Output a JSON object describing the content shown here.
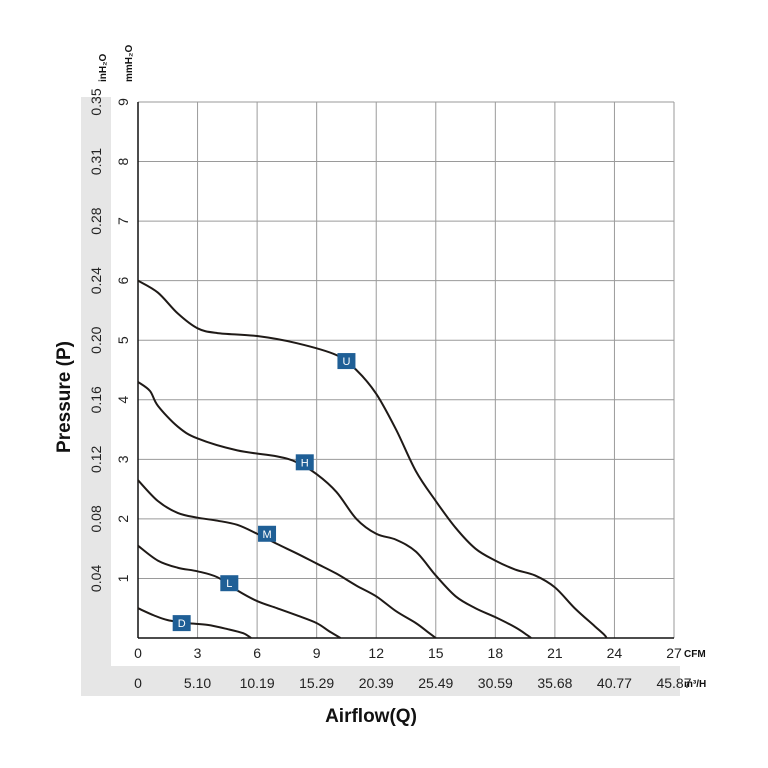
{
  "chart_data": {
    "type": "line",
    "xlabel": "Airflow(Q)",
    "ylabel": "Pressure (P)",
    "x_unit_primary": "CFM",
    "x_unit_secondary": "m³/H",
    "y_unit_primary": "mmH₂O",
    "y_unit_secondary": "inH₂O",
    "xlim": [
      0,
      27
    ],
    "ylim": [
      0,
      9
    ],
    "grid": true,
    "x_ticks": [
      "0",
      "3",
      "6",
      "9",
      "12",
      "15",
      "18",
      "21",
      "24",
      "27"
    ],
    "x_ticks_secondary": [
      "0",
      "5.10",
      "10.19",
      "15.29",
      "20.39",
      "25.49",
      "30.59",
      "35.68",
      "40.77",
      "45.87"
    ],
    "y_ticks": [
      "9",
      "8",
      "7",
      "6",
      "5",
      "4",
      "3",
      "2",
      "1"
    ],
    "y_ticks_secondary": [
      "0.35",
      "0.31",
      "0.28",
      "0.24",
      "0.20",
      "0.16",
      "0.12",
      "0.08",
      "0.04"
    ],
    "series": [
      {
        "name": "U",
        "label_at": [
          10.5,
          4.65
        ],
        "points": [
          [
            0,
            6.0
          ],
          [
            1,
            5.8
          ],
          [
            2,
            5.45
          ],
          [
            3,
            5.2
          ],
          [
            4,
            5.12
          ],
          [
            6,
            5.07
          ],
          [
            8,
            4.95
          ],
          [
            10,
            4.75
          ],
          [
            11,
            4.5
          ],
          [
            12,
            4.1
          ],
          [
            13,
            3.5
          ],
          [
            14,
            2.8
          ],
          [
            15,
            2.3
          ],
          [
            16,
            1.85
          ],
          [
            17,
            1.5
          ],
          [
            18,
            1.3
          ],
          [
            19,
            1.15
          ],
          [
            20,
            1.05
          ],
          [
            21,
            0.85
          ],
          [
            22,
            0.5
          ],
          [
            23,
            0.2
          ],
          [
            23.5,
            0.05
          ],
          [
            23.6,
            0.0
          ]
        ]
      },
      {
        "name": "H",
        "label_at": [
          8.4,
          2.95
        ],
        "points": [
          [
            0,
            4.3
          ],
          [
            0.6,
            4.15
          ],
          [
            1,
            3.9
          ],
          [
            2,
            3.55
          ],
          [
            3,
            3.35
          ],
          [
            5,
            3.15
          ],
          [
            7,
            3.05
          ],
          [
            8,
            2.95
          ],
          [
            9,
            2.75
          ],
          [
            10,
            2.45
          ],
          [
            11,
            2.0
          ],
          [
            12,
            1.75
          ],
          [
            13,
            1.65
          ],
          [
            14,
            1.45
          ],
          [
            15,
            1.05
          ],
          [
            16,
            0.7
          ],
          [
            17,
            0.5
          ],
          [
            18,
            0.35
          ],
          [
            19,
            0.18
          ],
          [
            19.6,
            0.05
          ],
          [
            19.8,
            0.0
          ]
        ]
      },
      {
        "name": "M",
        "label_at": [
          6.5,
          1.75
        ],
        "points": [
          [
            0,
            2.65
          ],
          [
            1,
            2.3
          ],
          [
            2,
            2.1
          ],
          [
            3,
            2.02
          ],
          [
            4,
            1.97
          ],
          [
            5,
            1.9
          ],
          [
            6,
            1.75
          ],
          [
            7,
            1.58
          ],
          [
            8,
            1.42
          ],
          [
            9,
            1.25
          ],
          [
            10,
            1.08
          ],
          [
            11,
            0.88
          ],
          [
            12,
            0.7
          ],
          [
            13,
            0.45
          ],
          [
            14,
            0.25
          ],
          [
            14.6,
            0.1
          ],
          [
            15,
            0.0
          ]
        ]
      },
      {
        "name": "L",
        "label_at": [
          4.6,
          0.92
        ],
        "points": [
          [
            0,
            1.55
          ],
          [
            1,
            1.3
          ],
          [
            2,
            1.18
          ],
          [
            3,
            1.12
          ],
          [
            4,
            1.02
          ],
          [
            5,
            0.8
          ],
          [
            6,
            0.62
          ],
          [
            7,
            0.5
          ],
          [
            8,
            0.38
          ],
          [
            9,
            0.25
          ],
          [
            9.6,
            0.12
          ],
          [
            10.2,
            0.0
          ]
        ]
      },
      {
        "name": "D",
        "label_at": [
          2.2,
          0.25
        ],
        "points": [
          [
            0,
            0.5
          ],
          [
            0.8,
            0.38
          ],
          [
            1.5,
            0.3
          ],
          [
            2.5,
            0.25
          ],
          [
            3.5,
            0.22
          ],
          [
            4.5,
            0.15
          ],
          [
            5.3,
            0.08
          ],
          [
            5.7,
            0.0
          ]
        ]
      }
    ]
  }
}
